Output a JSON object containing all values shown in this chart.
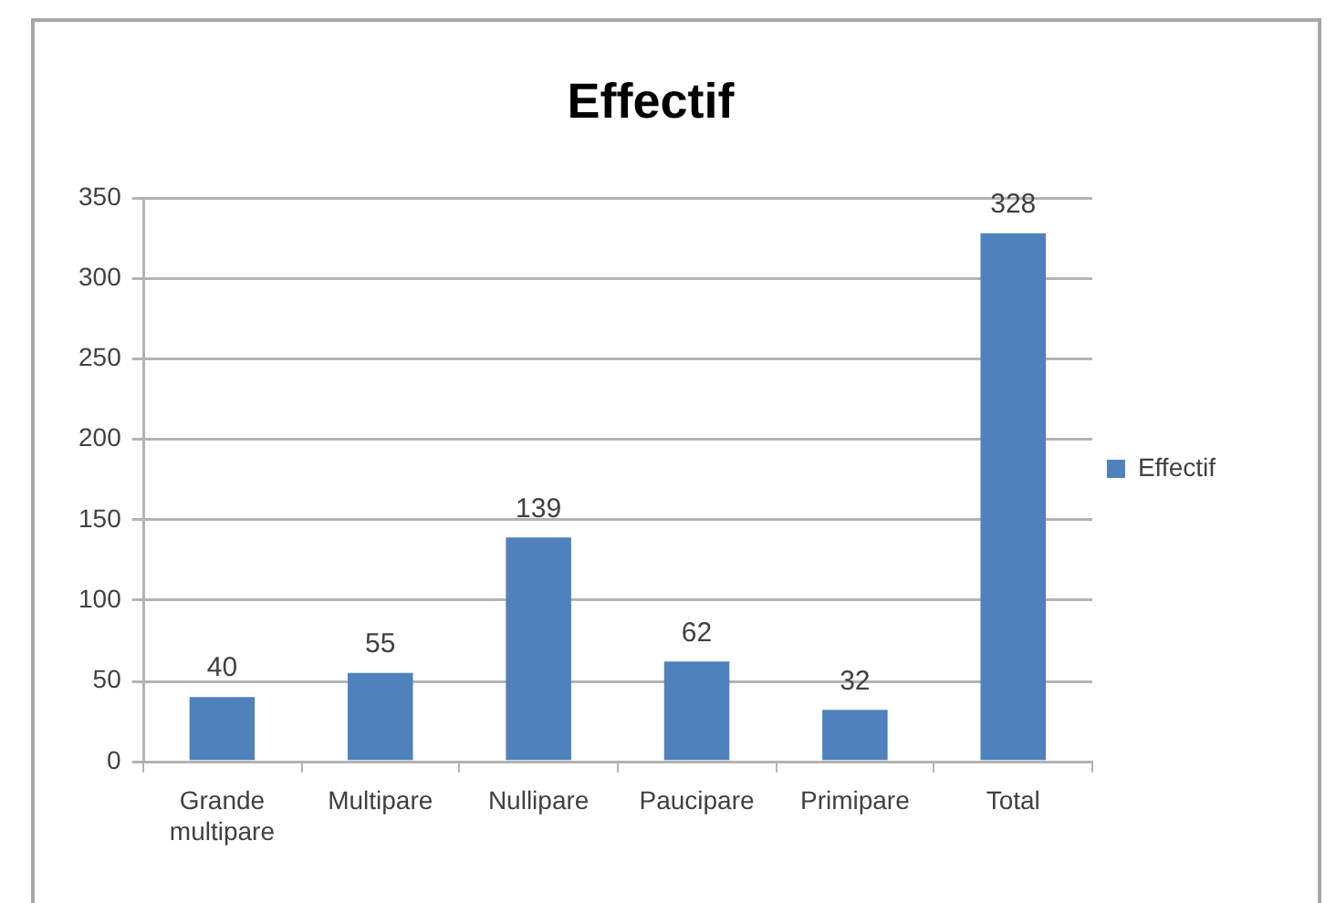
{
  "chart_data": {
    "type": "bar",
    "title": "Effectif",
    "categories": [
      "Grande multipare",
      "Multipare",
      "Nullipare",
      "Paucipare",
      "Primipare",
      "Total"
    ],
    "series": [
      {
        "name": "Effectif",
        "color": "#4f81bd",
        "values": [
          40,
          55,
          139,
          62,
          32,
          328
        ]
      }
    ],
    "ylim": [
      0,
      350
    ],
    "yticks": [
      0,
      50,
      100,
      150,
      200,
      250,
      300,
      350
    ],
    "grid": "y",
    "legend": "right",
    "data_labels": true
  }
}
